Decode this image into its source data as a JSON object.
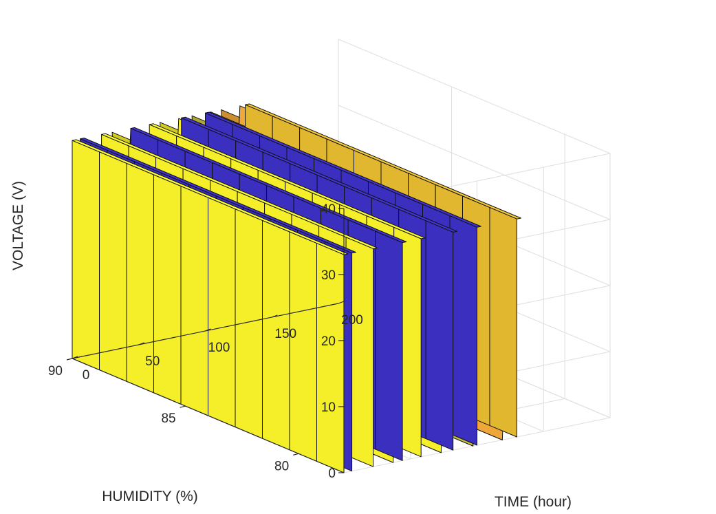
{
  "chart_data": {
    "type": "surface3d",
    "title": "",
    "xlabel": "TIME (hour)",
    "ylabel": "HUMIDITY (%)",
    "zlabel": "VOLTAGE (V)",
    "xlim": [
      0,
      200
    ],
    "ylim": [
      78,
      90
    ],
    "zlim": [
      0,
      40
    ],
    "x_ticks": [
      "0",
      "50",
      "100",
      "150",
      "200"
    ],
    "y_ticks": [
      "90",
      "85",
      "80"
    ],
    "z_ticks": [
      "0",
      "10",
      "20",
      "30",
      "40"
    ],
    "grid": true,
    "colors": {
      "yellow": "#f5ef2a",
      "blue": "#3b2fbf",
      "olive": "#c9c23b",
      "orange": "#f0a73a",
      "gold": "#e0b72e"
    },
    "sections": [
      {
        "x": 0,
        "voltage": 33,
        "color": "yellow",
        "strips": 10
      },
      {
        "x": 6,
        "voltage": 33,
        "color": "blue",
        "strips": 10
      },
      {
        "x": 22,
        "voltage": 33,
        "color": "yellow",
        "strips": 10
      },
      {
        "x": 44,
        "voltage": 33,
        "color": "blue",
        "strips": 10
      },
      {
        "x": 58,
        "voltage": 33,
        "color": "yellow",
        "strips": 10
      },
      {
        "x": 82,
        "voltage": 33,
        "color": "blue",
        "strips": 10
      },
      {
        "x": 100,
        "voltage": 33,
        "color": "blue",
        "strips": 10
      },
      {
        "x": 130,
        "voltage": 33,
        "color": "gold",
        "strips": 10
      }
    ],
    "troughs": [
      {
        "x": 30,
        "color": "yellow"
      },
      {
        "x": 66,
        "color": "yellow"
      },
      {
        "x": 90,
        "color": "olive"
      },
      {
        "x": 112,
        "color": "orange"
      }
    ]
  }
}
